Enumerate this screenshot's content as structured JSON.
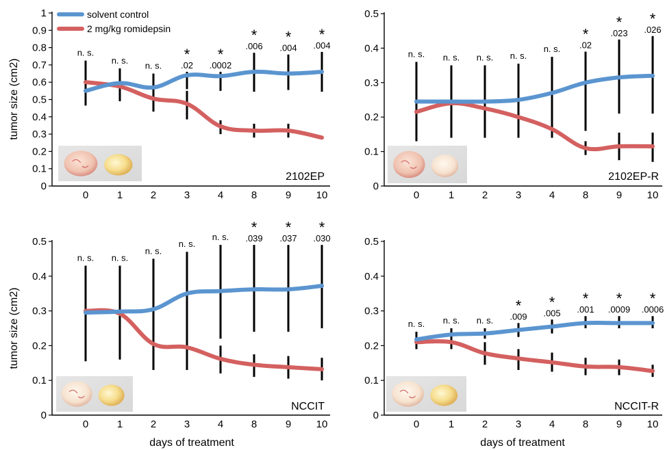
{
  "chart_data": [
    {
      "type": "line",
      "panel_label": "2102EP",
      "categories": [
        "0",
        "1",
        "2",
        "3",
        "4",
        "8",
        "9",
        "10"
      ],
      "yticks": [
        "0",
        "0.1",
        "0.2",
        "0.3",
        "0.4",
        "0.5",
        "0.6",
        "0.7",
        "0.8",
        "0.9",
        "1"
      ],
      "ylim": [
        0,
        1
      ],
      "ylabel": "tumor size (cm2)",
      "xlabel": "",
      "legend": [
        "solvent control",
        "2 mg/kg romidepsin"
      ],
      "colors": {
        "control": "#5b95d0",
        "treated": "#d46060"
      },
      "series": [
        {
          "name": "solvent control",
          "values": [
            0.55,
            0.595,
            0.57,
            0.64,
            0.635,
            0.66,
            0.65,
            0.66
          ],
          "err_low": [
            0.465,
            0.51,
            0.49,
            0.56,
            0.55,
            0.545,
            0.555,
            0.545
          ],
          "err_high": [
            0.725,
            0.68,
            0.65,
            0.66,
            0.66,
            0.77,
            0.76,
            0.775
          ]
        },
        {
          "name": "2 mg/kg romidepsin",
          "values": [
            0.6,
            0.575,
            0.505,
            0.475,
            0.345,
            0.32,
            0.32,
            0.28
          ],
          "err_low": [
            0.49,
            0.49,
            0.43,
            0.385,
            0.3,
            0.28,
            0.28,
            0.275
          ],
          "err_high": [
            0.7,
            0.64,
            0.58,
            0.55,
            0.38,
            0.36,
            0.36,
            0.29
          ]
        }
      ],
      "annotations": [
        {
          "star": false,
          "text": "n. s."
        },
        {
          "star": false,
          "text": "n. s."
        },
        {
          "star": false,
          "text": "n. s."
        },
        {
          "star": true,
          "text": ".02"
        },
        {
          "star": true,
          "text": ".0002"
        },
        {
          "star": true,
          "text": ".006"
        },
        {
          "star": true,
          "text": ".004"
        },
        {
          "star": true,
          "text": ".004"
        }
      ]
    },
    {
      "type": "line",
      "panel_label": "2102EP-R",
      "categories": [
        "0",
        "1",
        "2",
        "3",
        "4",
        "8",
        "9",
        "10"
      ],
      "yticks": [
        "0",
        "0.1",
        "0.2",
        "0.3",
        "0.4",
        "0.5"
      ],
      "ylim": [
        0,
        0.5
      ],
      "ylabel": "",
      "xlabel": "",
      "colors": {
        "control": "#5b95d0",
        "treated": "#d46060"
      },
      "series": [
        {
          "name": "solvent control",
          "values": [
            0.245,
            0.245,
            0.245,
            0.25,
            0.27,
            0.3,
            0.315,
            0.32
          ],
          "err_low": [
            0.13,
            0.14,
            0.14,
            0.14,
            0.14,
            0.16,
            0.21,
            0.21
          ],
          "err_high": [
            0.36,
            0.35,
            0.35,
            0.355,
            0.375,
            0.39,
            0.425,
            0.435
          ]
        },
        {
          "name": "2 mg/kg romidepsin",
          "values": [
            0.215,
            0.24,
            0.225,
            0.2,
            0.165,
            0.11,
            0.115,
            0.115
          ],
          "err_low": [
            0.13,
            0.14,
            0.14,
            0.14,
            0.14,
            0.09,
            0.075,
            0.07
          ],
          "err_high": [
            0.35,
            0.35,
            0.35,
            0.35,
            0.375,
            0.13,
            0.155,
            0.155
          ]
        }
      ],
      "annotations": [
        {
          "star": false,
          "text": "n. s."
        },
        {
          "star": false,
          "text": "n. s."
        },
        {
          "star": false,
          "text": "n. s."
        },
        {
          "star": false,
          "text": "n. s."
        },
        {
          "star": false,
          "text": "n. s."
        },
        {
          "star": true,
          "text": ".02"
        },
        {
          "star": true,
          "text": ".023"
        },
        {
          "star": true,
          "text": ".026"
        }
      ]
    },
    {
      "type": "line",
      "panel_label": "NCCIT",
      "categories": [
        "0",
        "1",
        "2",
        "3",
        "4",
        "8",
        "9",
        "10"
      ],
      "yticks": [
        "0",
        "0.1",
        "0.2",
        "0.3",
        "0.4",
        "0.5"
      ],
      "ylim": [
        0,
        0.5
      ],
      "ylabel": "tumor size (cm2)",
      "xlabel": "days of treatment",
      "colors": {
        "control": "#5b95d0",
        "treated": "#d46060"
      },
      "series": [
        {
          "name": "solvent control",
          "values": [
            0.295,
            0.298,
            0.305,
            0.35,
            0.357,
            0.362,
            0.362,
            0.372
          ],
          "err_low": [
            0.155,
            0.16,
            0.165,
            0.21,
            0.22,
            0.24,
            0.24,
            0.25
          ],
          "err_high": [
            0.43,
            0.43,
            0.45,
            0.47,
            0.49,
            0.49,
            0.49,
            0.49
          ]
        },
        {
          "name": "2 mg/kg romidepsin",
          "values": [
            0.3,
            0.292,
            0.205,
            0.195,
            0.162,
            0.145,
            0.138,
            0.132
          ],
          "err_low": [
            0.25,
            0.25,
            0.13,
            0.13,
            0.12,
            0.11,
            0.105,
            0.1
          ],
          "err_high": [
            0.35,
            0.34,
            0.28,
            0.26,
            0.2,
            0.175,
            0.17,
            0.165
          ]
        }
      ],
      "annotations": [
        {
          "star": false,
          "text": "n. s."
        },
        {
          "star": false,
          "text": "n. s."
        },
        {
          "star": false,
          "text": "n. s."
        },
        {
          "star": false,
          "text": "n. s."
        },
        {
          "star": false,
          "text": "n. s."
        },
        {
          "star": true,
          "text": ".039"
        },
        {
          "star": true,
          "text": ".037"
        },
        {
          "star": true,
          "text": ".030"
        }
      ]
    },
    {
      "type": "line",
      "panel_label": "NCCIT-R",
      "categories": [
        "0",
        "1",
        "2",
        "3",
        "4",
        "8",
        "9",
        "10"
      ],
      "yticks": [
        "0",
        "0.1",
        "0.2",
        "0.3",
        "0.4",
        "0.5"
      ],
      "ylim": [
        0,
        0.5
      ],
      "ylabel": "",
      "xlabel": "days of treatment",
      "colors": {
        "control": "#5b95d0",
        "treated": "#d46060"
      },
      "series": [
        {
          "name": "solvent control",
          "values": [
            0.218,
            0.232,
            0.235,
            0.245,
            0.255,
            0.265,
            0.265,
            0.265
          ],
          "err_low": [
            0.2,
            0.215,
            0.22,
            0.225,
            0.235,
            0.25,
            0.25,
            0.25
          ],
          "err_high": [
            0.24,
            0.25,
            0.25,
            0.265,
            0.275,
            0.285,
            0.285,
            0.285
          ]
        },
        {
          "name": "2 mg/kg romidepsin",
          "values": [
            0.21,
            0.21,
            0.178,
            0.163,
            0.152,
            0.14,
            0.138,
            0.127
          ],
          "err_low": [
            0.19,
            0.19,
            0.145,
            0.13,
            0.125,
            0.115,
            0.115,
            0.11
          ],
          "err_high": [
            0.23,
            0.23,
            0.21,
            0.19,
            0.18,
            0.165,
            0.16,
            0.145
          ]
        }
      ],
      "annotations": [
        {
          "star": false,
          "text": "n. s."
        },
        {
          "star": false,
          "text": "n. s."
        },
        {
          "star": false,
          "text": "n. s."
        },
        {
          "star": true,
          "text": ".009"
        },
        {
          "star": true,
          "text": ".005"
        },
        {
          "star": true,
          "text": ".001"
        },
        {
          "star": true,
          "text": ".0009"
        },
        {
          "star": true,
          "text": ".0006"
        }
      ]
    }
  ]
}
